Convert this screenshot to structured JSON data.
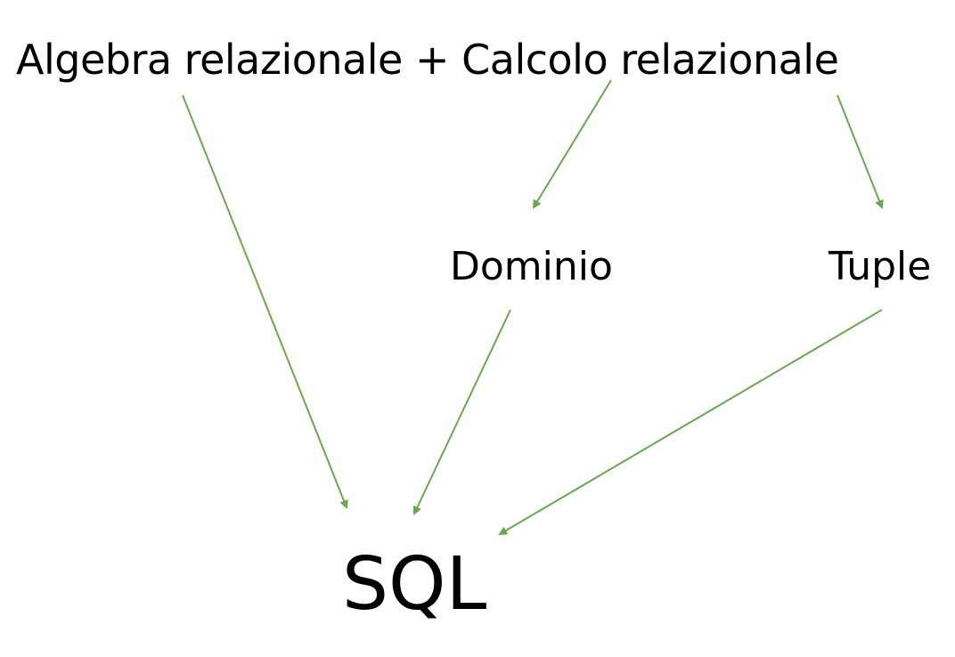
{
  "diagram": {
    "top_text": {
      "algebra": "Algebra relazionale",
      "plus": "+",
      "calcolo": "Calcolo relazionale"
    },
    "dominio": "Dominio",
    "tuple": "Tuple",
    "sql": "SQL",
    "arrow_color": "#6aa84f",
    "text_color": "#000000"
  }
}
